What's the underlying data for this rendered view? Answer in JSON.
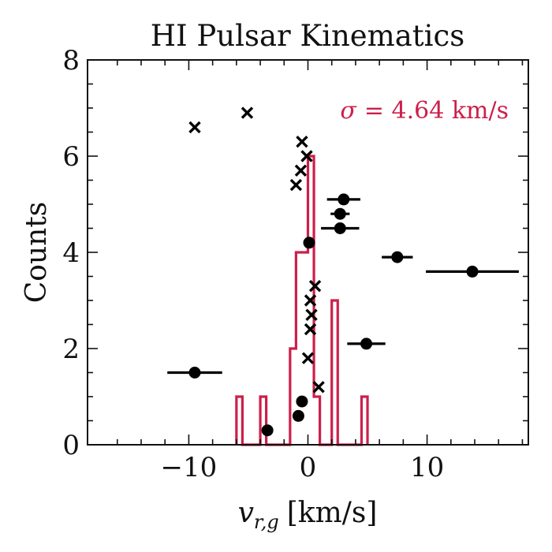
{
  "chart_data": {
    "type": "scatter",
    "title": "HI Pulsar Kinematics",
    "xlabel": "v_{r,g} [km/s]",
    "xlabel_main": "v",
    "xlabel_sub": "r,g",
    "xlabel_unit": "[km/s]",
    "ylabel": "Counts",
    "xlim": [
      -18.5,
      18.5
    ],
    "ylim": [
      0,
      8
    ],
    "xticks": [
      -10,
      0,
      10
    ],
    "xtick_labels": [
      "−10",
      "0",
      "10"
    ],
    "yticks": [
      0,
      2,
      4,
      6,
      8
    ],
    "ytick_labels": [
      "0",
      "2",
      "4",
      "6",
      "8"
    ],
    "grid": false,
    "annotation": "σ = 4.64 km/s",
    "annotation_prefix": "σ",
    "annotation_value": "= 4.64 km/s",
    "colors": {
      "histogram": "#cc1f4a",
      "markers": "#000000",
      "axes": "#111111"
    },
    "histogram": {
      "bin_edges": [
        -6,
        -5.5,
        -5,
        -4,
        -3.5,
        -3,
        -2,
        -1.5,
        -1,
        -0.5,
        0,
        0.5,
        1,
        2,
        2.5,
        3,
        4.5,
        5
      ],
      "counts": [
        1,
        0,
        0,
        1,
        0,
        0,
        0,
        2,
        4,
        4,
        6,
        1,
        0,
        3,
        0,
        0,
        1
      ]
    },
    "series": [
      {
        "marker": "circle",
        "points": [
          {
            "x": -9.5,
            "y": 1.5,
            "xerr": 2.3
          },
          {
            "x": -3.4,
            "y": 0.3,
            "xerr": 0
          },
          {
            "x": -0.8,
            "y": 0.6,
            "xerr": 0
          },
          {
            "x": -0.5,
            "y": 0.9,
            "xerr": 0
          },
          {
            "x": 0.1,
            "y": 4.2,
            "xerr": 0
          },
          {
            "x": 3.0,
            "y": 5.1,
            "xerr": 1.4
          },
          {
            "x": 2.7,
            "y": 4.8,
            "xerr": 0.8
          },
          {
            "x": 2.7,
            "y": 4.5,
            "xerr": 1.6
          },
          {
            "x": 4.9,
            "y": 2.1,
            "xerr": 1.6
          },
          {
            "x": 7.5,
            "y": 3.9,
            "xerr": 1.3
          },
          {
            "x": 13.8,
            "y": 3.6,
            "xerr": 3.9
          }
        ]
      },
      {
        "marker": "x",
        "points": [
          {
            "x": -9.5,
            "y": 6.6
          },
          {
            "x": -5.1,
            "y": 6.9
          },
          {
            "x": -0.5,
            "y": 6.3
          },
          {
            "x": -0.1,
            "y": 6.0
          },
          {
            "x": -0.6,
            "y": 5.7
          },
          {
            "x": -1.0,
            "y": 5.4
          },
          {
            "x": 0.6,
            "y": 3.3
          },
          {
            "x": 0.2,
            "y": 3.0
          },
          {
            "x": 0.3,
            "y": 2.7
          },
          {
            "x": 0.2,
            "y": 2.4
          },
          {
            "x": 0.0,
            "y": 1.8
          },
          {
            "x": 0.9,
            "y": 1.2
          }
        ]
      }
    ]
  }
}
